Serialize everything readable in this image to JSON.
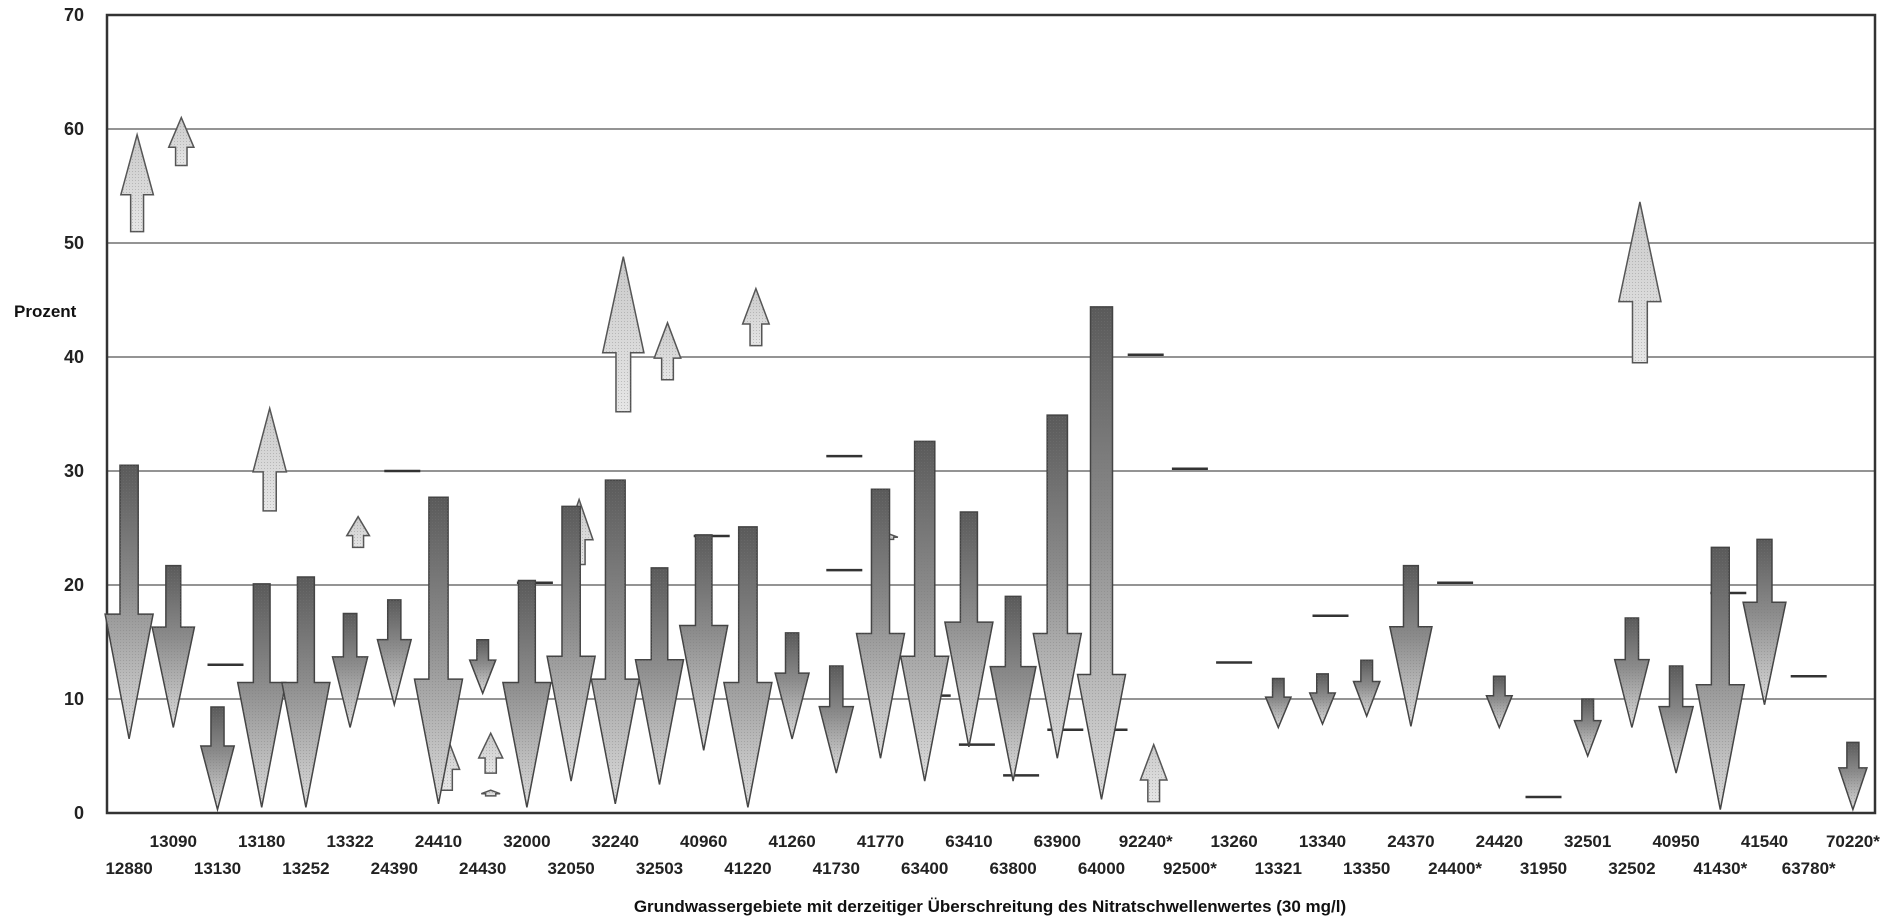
{
  "chart_data": {
    "type": "arrow-range",
    "ylabel": "Prozent",
    "xlabel": "Grundwassergebiete mit derzeitiger Überschreitung des Nitratschwellenwertes (30 mg/l)",
    "ylim": [
      0,
      70
    ],
    "yticks": [
      0,
      10,
      20,
      30,
      40,
      50,
      60,
      70
    ],
    "grid": true,
    "categories": [
      "12880",
      "13090",
      "13130",
      "13180",
      "13252",
      "13322",
      "24390",
      "24410",
      "24430",
      "32000",
      "32050",
      "32240",
      "32503",
      "40960",
      "41220",
      "41260",
      "41730",
      "41770",
      "63400",
      "63410",
      "63800",
      "63900",
      "64000",
      "92240*",
      "92500*",
      "13260",
      "13321",
      "13340",
      "13350",
      "24370",
      "24400*",
      "24420",
      "31950",
      "32501",
      "32502",
      "40950",
      "41430*",
      "41540",
      "63780*",
      "70220*"
    ],
    "series": [
      {
        "arrows": [
          {
            "from": 30.5,
            "to": 6.5
          },
          {
            "from": 21.7,
            "to": 7.5
          },
          {
            "from": 9.3,
            "to": 0.3
          },
          {
            "from": 20.1,
            "to": 0.5
          },
          {
            "from": 20.7,
            "to": 0.5
          },
          {
            "from": 17.5,
            "to": 7.5
          },
          {
            "from": 18.7,
            "to": 9.5
          },
          {
            "from": 27.7,
            "to": 0.8
          },
          {
            "from": 15.2,
            "to": 10.5
          },
          {
            "from": 20.4,
            "to": 0.5
          },
          {
            "from": 26.9,
            "to": 2.8
          },
          {
            "from": 29.2,
            "to": 0.8
          },
          {
            "from": 21.5,
            "to": 2.5
          },
          {
            "from": 24.4,
            "to": 5.5
          },
          {
            "from": 25.1,
            "to": 0.5
          },
          {
            "from": 15.8,
            "to": 6.5
          },
          {
            "from": 12.9,
            "to": 3.5
          },
          {
            "from": 28.4,
            "to": 4.8
          },
          {
            "from": 32.6,
            "to": 2.8
          },
          {
            "from": 26.4,
            "to": 5.8
          },
          {
            "from": 19.0,
            "to": 2.8
          },
          {
            "from": 34.9,
            "to": 4.8
          },
          {
            "from": 44.4,
            "to": 1.2
          },
          {
            "from": 40.2,
            "to": 40.2
          },
          {
            "from": 30.2,
            "to": 30.2
          },
          {
            "from": 13.2,
            "to": 13.2
          },
          {
            "from": 11.8,
            "to": 7.5
          },
          {
            "from": 12.2,
            "to": 7.8
          },
          {
            "from": 13.4,
            "to": 8.5
          },
          {
            "from": 21.7,
            "to": 7.6
          },
          {
            "from": 20.2,
            "to": 20.2
          },
          {
            "from": 12.0,
            "to": 7.5
          },
          {
            "from": 1.4,
            "to": 1.4
          },
          {
            "from": 10.0,
            "to": 5.0
          },
          {
            "from": 17.1,
            "to": 7.5
          },
          {
            "from": 12.9,
            "to": 3.5
          },
          {
            "from": 23.3,
            "to": 0.3
          },
          {
            "from": 24.0,
            "to": 9.5
          },
          {
            "from": 12.0,
            "to": 12.0
          },
          {
            "from": 6.2,
            "to": 0.3
          }
        ]
      },
      {
        "arrows": [
          {
            "from": 51.0,
            "to": 59.5
          },
          {
            "from": 56.8,
            "to": 61.0
          },
          {
            "from": 13.0,
            "to": 13.0
          },
          {
            "from": 26.5,
            "to": 35.5
          },
          {
            "from": 23.3,
            "to": 26.0
          },
          {
            "from": 30.0,
            "to": 30.0
          },
          {
            "from": 2.0,
            "to": 6.8
          },
          {
            "from": 3.5,
            "to": 7.0
          },
          {
            "from": 1.5,
            "to": 2.0
          },
          {
            "from": 20.2,
            "to": 20.2
          },
          {
            "from": 21.8,
            "to": 27.5
          },
          {
            "from": 35.2,
            "to": 48.8
          },
          {
            "from": 38.0,
            "to": 43.0
          },
          {
            "from": 24.3,
            "to": 24.3
          },
          {
            "from": 41.0,
            "to": 46.0
          },
          {
            "from": 21.3,
            "to": 21.3
          },
          {
            "from": 31.3,
            "to": 31.3
          },
          {
            "from": 24.0,
            "to": 24.5
          },
          {
            "from": 10.3,
            "to": 10.3
          },
          {
            "from": 6.0,
            "to": 6.0
          },
          {
            "from": 3.3,
            "to": 3.3
          },
          {
            "from": 7.3,
            "to": 7.3
          },
          {
            "from": 7.3,
            "to": 7.3
          },
          {
            "from": 1.0,
            "to": 6.0
          },
          {
            "from": 17.3,
            "to": 17.3
          },
          {
            "from": 39.5,
            "to": 53.6
          },
          {
            "from": 19.3,
            "to": 19.3
          }
        ]
      }
    ]
  }
}
